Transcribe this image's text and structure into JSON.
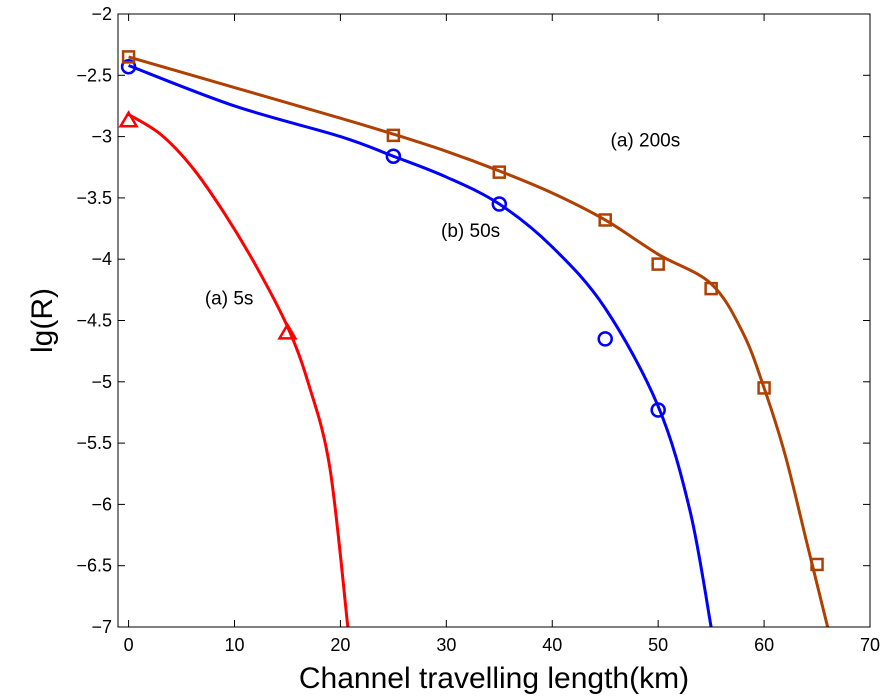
{
  "chart_data": {
    "type": "line",
    "title": "",
    "xlabel": "Channel travelling length(km)",
    "ylabel": "lg(R)",
    "xlim": [
      -1,
      70
    ],
    "ylim": [
      -7,
      -2
    ],
    "xticks": [
      0,
      10,
      20,
      30,
      40,
      50,
      60,
      70
    ],
    "yticks": [
      -7,
      -6.5,
      -6,
      -5.5,
      -5,
      -4.5,
      -4,
      -3.5,
      -3,
      -2.5,
      -2
    ],
    "xtick_labels": [
      "0",
      "10",
      "20",
      "30",
      "40",
      "50",
      "60",
      "70"
    ],
    "ytick_labels": [
      "−7",
      "−6.5",
      "−6",
      "−5.5",
      "−5",
      "−4.5",
      "−4",
      "−3.5",
      "−3",
      "−2.5",
      "−2"
    ],
    "grid": false,
    "legend": "none",
    "series": [
      {
        "color": "#ff0000",
        "marker": "triangle",
        "curve": [
          [
            0,
            -2.82
          ],
          [
            3,
            -2.98
          ],
          [
            6,
            -3.25
          ],
          [
            9,
            -3.62
          ],
          [
            12,
            -4.05
          ],
          [
            15,
            -4.55
          ],
          [
            17,
            -5.02
          ],
          [
            19,
            -5.7
          ],
          [
            20.7,
            -7.0
          ]
        ],
        "points": [
          [
            0,
            -2.87
          ],
          [
            15,
            -4.6
          ]
        ]
      },
      {
        "color": "#0000ff",
        "marker": "circle",
        "curve": [
          [
            0,
            -2.42
          ],
          [
            10,
            -2.75
          ],
          [
            20,
            -3.0
          ],
          [
            25,
            -3.16
          ],
          [
            30,
            -3.33
          ],
          [
            35,
            -3.55
          ],
          [
            40,
            -3.9
          ],
          [
            45,
            -4.4
          ],
          [
            50,
            -5.2
          ],
          [
            53,
            -6.05
          ],
          [
            55,
            -7.0
          ]
        ],
        "points": [
          [
            0,
            -2.43
          ],
          [
            25,
            -3.16
          ],
          [
            35,
            -3.55
          ],
          [
            45,
            -4.65
          ],
          [
            50,
            -5.23
          ]
        ]
      },
      {
        "color": "#b04000",
        "marker": "square",
        "curve": [
          [
            0,
            -2.35
          ],
          [
            10,
            -2.6
          ],
          [
            20,
            -2.85
          ],
          [
            25,
            -2.98
          ],
          [
            30,
            -3.12
          ],
          [
            35,
            -3.28
          ],
          [
            40,
            -3.46
          ],
          [
            45,
            -3.68
          ],
          [
            50,
            -3.96
          ],
          [
            55,
            -4.2
          ],
          [
            58,
            -4.6
          ],
          [
            60,
            -5.05
          ],
          [
            62,
            -5.6
          ],
          [
            64,
            -6.3
          ],
          [
            65,
            -6.65
          ],
          [
            66,
            -7.0
          ]
        ],
        "points": [
          [
            0,
            -2.35
          ],
          [
            25,
            -2.99
          ],
          [
            35,
            -3.29
          ],
          [
            45,
            -3.68
          ],
          [
            50,
            -4.04
          ],
          [
            55,
            -4.24
          ],
          [
            60,
            -5.05
          ],
          [
            65,
            -6.49
          ]
        ]
      }
    ],
    "annotations": [
      {
        "text": "(a) 200s",
        "x": 45.5,
        "y": -3.08
      },
      {
        "text": "(b) 50s",
        "x": 29.5,
        "y": -3.82
      },
      {
        "text": "(a) 5s",
        "x": 7.2,
        "y": -4.37
      }
    ]
  }
}
